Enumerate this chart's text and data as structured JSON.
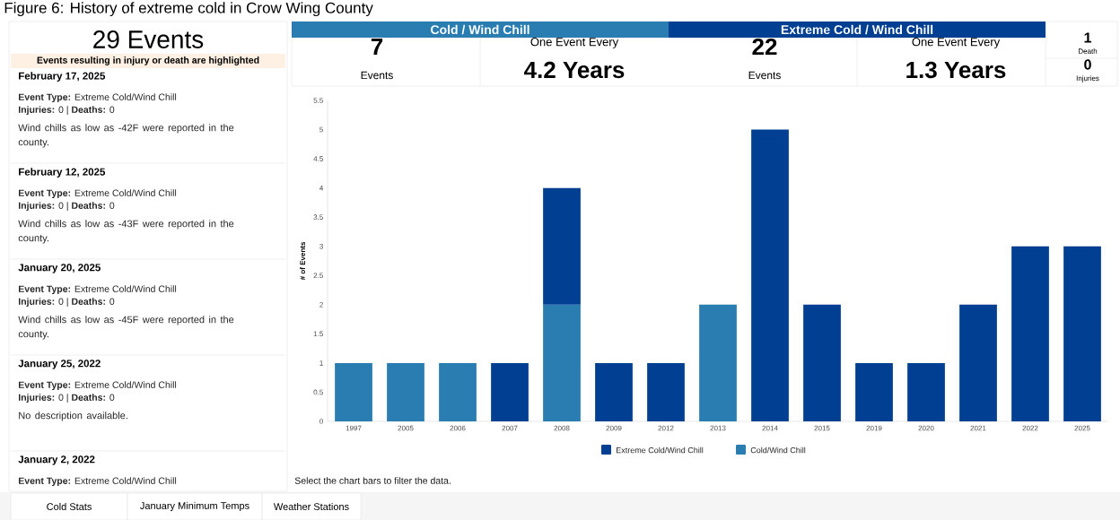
{
  "chart_data": [
    {
      "type": "other",
      "title": "29 Events",
      "subtitle": "Events resulting in injury or death are highlighted",
      "annotations": [
        "February 17, 2025",
        "**Event Type:** Extreme Cold/Wind Chill",
        "**Injuries:** 0  |  **Deaths:** 0",
        "Wind chills as low as -42F were reported in the county.",
        "February 12, 2025",
        "**Event Type:** Extreme Cold/Wind Chill",
        "**Injuries:** 0  |  **Deaths:** 0",
        "Wind chills as low as -43F were reported in the county.",
        "January 20, 2025",
        "**Event Type:** Extreme Cold/Wind Chill",
        "**Injuries:** 0  |  **Deaths:** 0",
        "Wind chills as low as -45F were reported in the county.",
        "January 25, 2022",
        "**Event Type:** Extreme Cold/Wind Chill",
        "**Injuries:** 0  |  **Deaths:** 0",
        "No description available.",
        "January 2, 2022",
        "**Event Type:** Extreme Cold/Wind Chill"
      ]
    },
    {
      "type": "other",
      "annotations": [
        "Cold / Wind Chill",
        "7",
        "Events",
        "One Event Every",
        "4.2 Years",
        "Extreme Cold / Wind Chill",
        "22",
        "Events",
        "One Event Every",
        "1.3 Years",
        "1",
        "Death",
        "0",
        "Injuries"
      ]
    },
    {
      "type": "bar",
      "stacked": true,
      "title": "Figure 6: History of extreme cold in Crow Wing County",
      "ylabel": "# of Events",
      "categories": [
        "1997",
        "2005",
        "2006",
        "2007",
        "2008",
        "2009",
        "2012",
        "2013",
        "2014",
        "2015",
        "2019",
        "2020",
        "2021",
        "2022",
        "2025"
      ],
      "series": [
        {
          "name": "Cold/Wind Chill",
          "color": "#2a7db0",
          "values": [
            1,
            1,
            1,
            null,
            2,
            null,
            null,
            2,
            null,
            null,
            null,
            null,
            null,
            null,
            null
          ]
        },
        {
          "name": "Extreme Cold/Wind Chill",
          "color": "#003f91",
          "values": [
            null,
            null,
            null,
            1,
            2,
            1,
            1,
            null,
            5,
            2,
            1,
            1,
            2,
            3,
            3
          ]
        }
      ],
      "ylim": [
        0,
        5.5
      ],
      "yticks": [
        0,
        0.5,
        1,
        1.5,
        2,
        2.5,
        3,
        3.5,
        4,
        4.5,
        5,
        5.5
      ],
      "legend": "bottom",
      "annotations": [
        "Select the chart bars to filter the data.",
        "Cold Stats",
        "January Minimum Temps",
        "Weather Stations"
      ]
    }
  ]
}
